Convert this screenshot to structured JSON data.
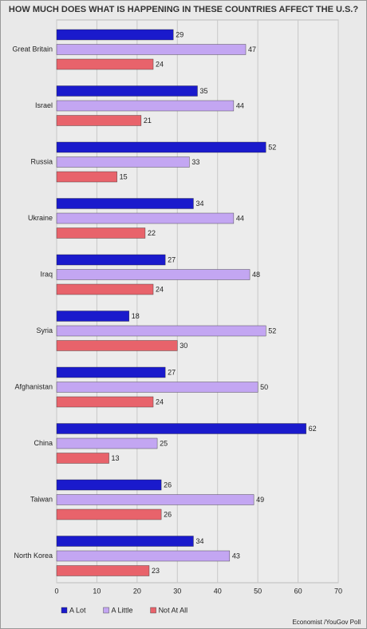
{
  "chart_data": {
    "type": "hbar",
    "title": "HOW MUCH DOES WHAT IS HAPPENING IN THESE COUNTRIES AFFECT THE U.S.?",
    "categories": [
      "Great Britain",
      "Israel",
      "Russia",
      "Ukraine",
      "Iraq",
      "Syria",
      "Afghanistan",
      "China",
      "Taiwan",
      "North Korea"
    ],
    "series": [
      {
        "name": "A Lot",
        "color": "#1a1acc",
        "values": [
          29,
          35,
          52,
          34,
          27,
          18,
          27,
          62,
          26,
          34
        ]
      },
      {
        "name": "A Little",
        "color": "#c3a6f2",
        "values": [
          47,
          44,
          33,
          44,
          48,
          52,
          50,
          25,
          49,
          43
        ]
      },
      {
        "name": "Not At All",
        "color": "#e8636b",
        "values": [
          24,
          21,
          15,
          22,
          24,
          30,
          24,
          13,
          26,
          23
        ]
      }
    ],
    "xlim": [
      0,
      70
    ],
    "xticks": [
      0,
      10,
      20,
      30,
      40,
      50,
      60,
      70
    ],
    "grid": true,
    "source": "Economist /YouGov Poll"
  }
}
